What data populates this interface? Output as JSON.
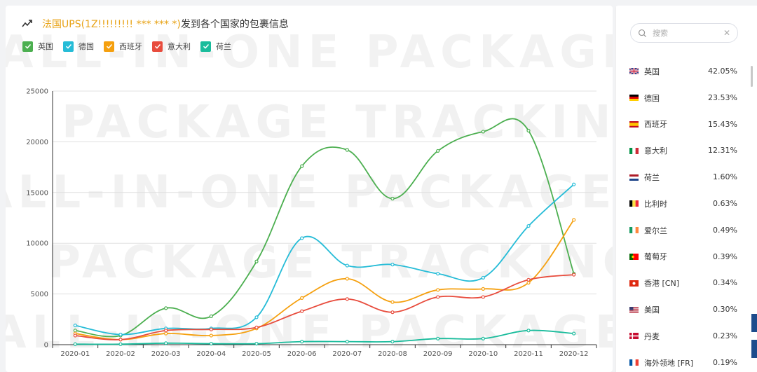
{
  "header": {
    "icon": "trend-up-icon",
    "title_accent": "法国UPS(1Z!!!!!!!!! *** *** *)",
    "title_rest": "发到各个国家的包裹信息"
  },
  "legend": [
    {
      "label": "英国",
      "color": "#4caf50"
    },
    {
      "label": "德国",
      "color": "#26bcd7"
    },
    {
      "label": "西班牙",
      "color": "#f5a00f"
    },
    {
      "label": "意大利",
      "color": "#e84c3d"
    },
    {
      "label": "荷兰",
      "color": "#1abc9c"
    }
  ],
  "chart_data": {
    "type": "line",
    "categories": [
      "2020-01",
      "2020-02",
      "2020-03",
      "2020-04",
      "2020-05",
      "2020-06",
      "2020-07",
      "2020-08",
      "2020-09",
      "2020-10",
      "2020-11",
      "2020-12"
    ],
    "ylim": [
      0,
      25000
    ],
    "yticks": [
      0,
      5000,
      10000,
      15000,
      20000,
      25000
    ],
    "grid": true,
    "series": [
      {
        "name": "英国",
        "color": "#4caf50",
        "values": [
          1400,
          900,
          3600,
          2800,
          8200,
          17600,
          19200,
          14400,
          19100,
          21000,
          21100,
          7000
        ]
      },
      {
        "name": "德国",
        "color": "#26bcd7",
        "values": [
          1900,
          1000,
          1600,
          1600,
          2700,
          10500,
          7800,
          7900,
          7000,
          6600,
          11700,
          15800
        ]
      },
      {
        "name": "西班牙",
        "color": "#f5a00f",
        "values": [
          1100,
          500,
          1100,
          900,
          1600,
          4600,
          6500,
          4200,
          5400,
          5500,
          6100,
          12300
        ]
      },
      {
        "name": "意大利",
        "color": "#e84c3d",
        "values": [
          900,
          500,
          1400,
          1500,
          1700,
          3300,
          4500,
          3200,
          4700,
          4700,
          6400,
          6900
        ]
      },
      {
        "name": "荷兰",
        "color": "#1abc9c",
        "values": [
          50,
          50,
          150,
          100,
          100,
          300,
          300,
          300,
          600,
          600,
          1400,
          1100
        ]
      }
    ]
  },
  "search": {
    "placeholder": "搜索",
    "value": "",
    "icon": "search-icon",
    "clear_icon": "close-icon"
  },
  "countries": [
    {
      "name": "英国",
      "pct": "42.05%",
      "flag": "uk"
    },
    {
      "name": "德国",
      "pct": "23.53%",
      "flag": "de"
    },
    {
      "name": "西班牙",
      "pct": "15.43%",
      "flag": "es"
    },
    {
      "name": "意大利",
      "pct": "12.31%",
      "flag": "it"
    },
    {
      "name": "荷兰",
      "pct": "1.60%",
      "flag": "nl"
    },
    {
      "name": "比利时",
      "pct": "0.63%",
      "flag": "be"
    },
    {
      "name": "爱尔兰",
      "pct": "0.49%",
      "flag": "ie"
    },
    {
      "name": "葡萄牙",
      "pct": "0.39%",
      "flag": "pt"
    },
    {
      "name": "香港 [CN]",
      "pct": "0.34%",
      "flag": "hk"
    },
    {
      "name": "美国",
      "pct": "0.30%",
      "flag": "us"
    },
    {
      "name": "丹麦",
      "pct": "0.23%",
      "flag": "dk"
    },
    {
      "name": "海外领地 [FR]",
      "pct": "0.19%",
      "flag": "fr"
    }
  ]
}
